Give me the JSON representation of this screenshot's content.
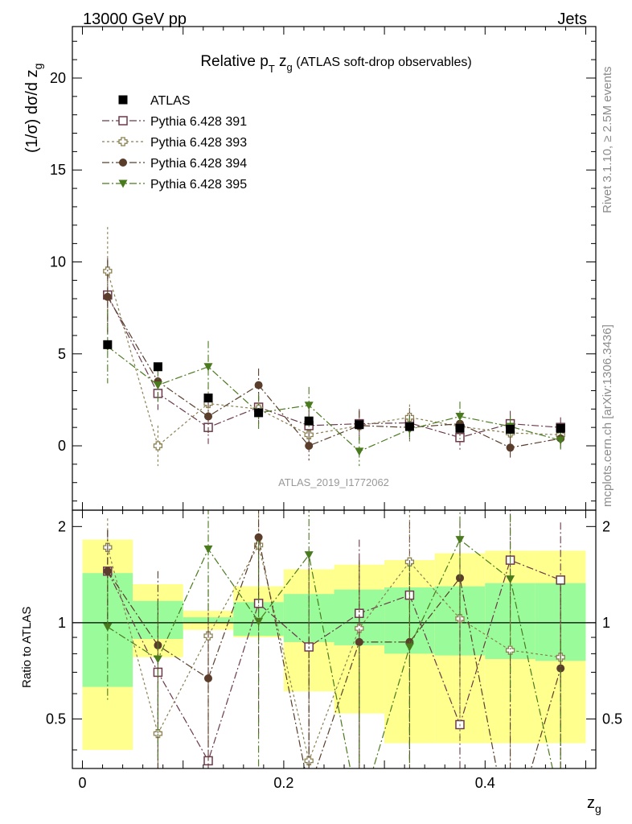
{
  "header": {
    "left": "13000 GeV pp",
    "right": "Jets"
  },
  "side": {
    "rivet": "Rivet 3.1.10, ≥ 2.5M events",
    "mcplots": "mcplots.cern.ch [arXiv:1306.3436]"
  },
  "chart_data": {
    "type": "line",
    "title": "Relative p_T z_g (ATLAS soft-drop observables)",
    "title_parts": {
      "main": "Relative p",
      "sub": "T",
      "var": " z",
      "varsub": "g",
      "rest": " (ATLAS soft-drop observables)"
    },
    "analysis_id": "ATLAS_2019_I1772062",
    "xlabel": "z_g",
    "ylabel": "(1/σ) dσ/d z_g",
    "ratio_ylabel": "Ratio to ATLAS",
    "xlim": [
      -0.01,
      0.51
    ],
    "ylim": [
      -3.5,
      22.8
    ],
    "ratio_ylim": [
      0.35,
      2.25
    ],
    "x_ticks": [
      "0",
      "0.2",
      "0.4"
    ],
    "y_ticks": [
      "0",
      "5",
      "10",
      "15",
      "20"
    ],
    "ratio_ticks": [
      "0.5",
      "1",
      "2"
    ],
    "x": [
      0.025,
      0.075,
      0.125,
      0.175,
      0.225,
      0.275,
      0.325,
      0.375,
      0.425,
      0.475
    ],
    "atlas": {
      "name": "ATLAS",
      "values": [
        5.5,
        4.3,
        2.6,
        1.8,
        1.35,
        1.15,
        1.05,
        0.95,
        0.9,
        0.95
      ]
    },
    "series": [
      {
        "name": "Pythia 6.428 391",
        "color": "#6b3a4a",
        "marker": "open-square",
        "dash": "9,3,2,3",
        "values": [
          8.2,
          2.85,
          1.0,
          2.1,
          1.1,
          1.2,
          1.25,
          0.45,
          1.2,
          1.0
        ],
        "errors": [
          2.0,
          0.9,
          0.9,
          0.8,
          0.9,
          0.8,
          0.8,
          0.7,
          0.7,
          0.55
        ],
        "ratio": [
          1.45,
          0.7,
          0.37,
          1.15,
          0.84,
          1.07,
          1.22,
          0.48,
          1.57,
          1.36
        ],
        "ratio_err": [
          0.5,
          0.45,
          0.6,
          0.7,
          0.8,
          0.75,
          0.85,
          0.85,
          0.85,
          0.7
        ]
      },
      {
        "name": "Pythia 6.428 393",
        "color": "#8b8051",
        "marker": "open-cross",
        "dash": "3,3",
        "values": [
          9.5,
          0.0,
          2.3,
          2.0,
          0.6,
          1.1,
          1.55,
          1.05,
          0.7,
          0.6
        ],
        "errors": [
          2.4,
          1.1,
          0.9,
          0.9,
          0.8,
          0.8,
          0.7,
          0.7,
          0.6,
          0.6
        ],
        "ratio": [
          1.72,
          0.45,
          0.91,
          1.75,
          0.37,
          0.96,
          1.55,
          1.03,
          0.82,
          0.78
        ],
        "ratio_err": [
          0.4,
          0.5,
          0.5,
          0.6,
          0.6,
          0.6,
          0.7,
          0.6,
          0.6,
          0.5
        ]
      },
      {
        "name": "Pythia 6.428 394",
        "color": "#5a3d2b",
        "marker": "filled-circle",
        "dash": "9,3,2,3",
        "values": [
          8.1,
          3.5,
          1.6,
          3.3,
          0.0,
          1.1,
          1.0,
          1.2,
          -0.1,
          0.4
        ],
        "errors": [
          2.0,
          0.9,
          0.9,
          0.9,
          0.8,
          0.8,
          0.7,
          0.7,
          0.6,
          0.6
        ],
        "ratio": [
          1.45,
          0.85,
          0.67,
          1.85,
          0.3,
          0.87,
          0.87,
          1.38,
          0.2,
          0.72
        ],
        "ratio_err": [
          0.5,
          0.6,
          0.6,
          0.7,
          0.6,
          0.7,
          0.7,
          0.7,
          0.6,
          0.6
        ]
      },
      {
        "name": "Pythia 6.428 395",
        "color": "#4a7a1e",
        "marker": "filled-triangle-down",
        "dash": "9,3,2,3",
        "values": [
          5.4,
          3.3,
          4.3,
          1.8,
          2.2,
          -0.3,
          0.9,
          1.6,
          1.05,
          0.3
        ],
        "errors": [
          2.0,
          0.9,
          1.4,
          1.0,
          1.0,
          0.8,
          0.7,
          0.8,
          0.6,
          0.5
        ],
        "ratio": [
          0.97,
          0.77,
          1.7,
          1.01,
          1.63,
          0.25,
          0.84,
          1.82,
          1.37,
          0.27
        ],
        "ratio_err": [
          0.4,
          0.4,
          0.6,
          0.8,
          0.7,
          0.6,
          0.7,
          0.8,
          0.8,
          0.6
        ]
      }
    ],
    "ratio_bands": {
      "x_edges": [
        0.0,
        0.05,
        0.1,
        0.15,
        0.2,
        0.25,
        0.3,
        0.35,
        0.4,
        0.45,
        0.5
      ],
      "inner_lo": [
        0.63,
        0.89,
        1.0,
        0.91,
        0.87,
        0.85,
        0.8,
        0.79,
        0.77,
        0.76
      ],
      "inner_hi": [
        1.43,
        1.17,
        1.04,
        1.16,
        1.23,
        1.27,
        1.29,
        1.3,
        1.33,
        1.33
      ],
      "outer_lo": [
        0.4,
        0.78,
        0.95,
        0.9,
        0.61,
        0.52,
        0.42,
        0.42,
        0.42,
        0.42
      ],
      "outer_hi": [
        1.82,
        1.32,
        1.09,
        1.3,
        1.47,
        1.52,
        1.57,
        1.65,
        1.68,
        1.68
      ],
      "inner_color": "#9afb9a",
      "outer_color": "#ffff8e"
    }
  }
}
